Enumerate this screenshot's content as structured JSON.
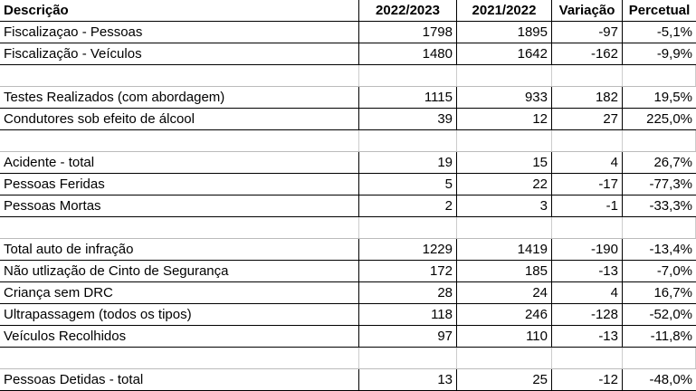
{
  "table": {
    "header": [
      "Descrição",
      "2022/2023",
      "2021/2022",
      "Variação",
      "Percetual"
    ],
    "sections": [
      {
        "rows": [
          [
            "Fiscalizaçao - Pessoas",
            "1798",
            "1895",
            "-97",
            "-5,1%"
          ],
          [
            "Fiscalização - Veículos",
            "1480",
            "1642",
            "-162",
            "-9,9%"
          ]
        ]
      },
      {
        "rows": [
          [
            "Testes Realizados (com abordagem)",
            "1115",
            "933",
            "182",
            "19,5%"
          ],
          [
            "Condutores sob efeito de álcool",
            "39",
            "12",
            "27",
            "225,0%"
          ]
        ]
      },
      {
        "rows": [
          [
            "Acidente - total",
            "19",
            "15",
            "4",
            "26,7%"
          ],
          [
            "Pessoas Feridas",
            "5",
            "22",
            "-17",
            "-77,3%"
          ],
          [
            "Pessoas Mortas",
            "2",
            "3",
            "-1",
            "-33,3%"
          ]
        ]
      },
      {
        "rows": [
          [
            "Total auto de infração",
            "1229",
            "1419",
            "-190",
            "-13,4%"
          ],
          [
            "Não utlização de Cinto de Segurança",
            "172",
            "185",
            "-13",
            "-7,0%"
          ],
          [
            "Criança sem DRC",
            "28",
            "24",
            "4",
            "16,7%"
          ],
          [
            "Ultrapassagem (todos os tipos)",
            "118",
            "246",
            "-128",
            "-52,0%"
          ],
          [
            "Veículos Recolhidos",
            "97",
            "110",
            "-13",
            "-11,8%"
          ]
        ]
      },
      {
        "rows": [
          [
            "Pessoas Detidas - total",
            "13",
            "25",
            "-12",
            "-48,0%"
          ]
        ]
      }
    ]
  }
}
